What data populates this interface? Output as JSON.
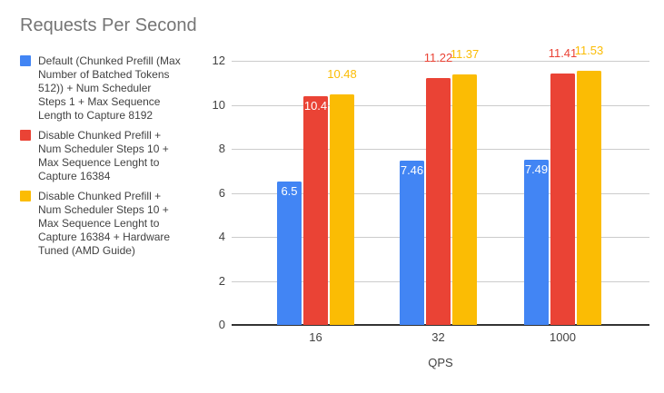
{
  "chart_data": {
    "type": "bar",
    "title": "Requests Per Second",
    "xlabel": "QPS",
    "categories": [
      "16",
      "32",
      "1000"
    ],
    "ylim": [
      0,
      12
    ],
    "yticks": [
      0,
      2,
      4,
      6,
      8,
      10,
      12
    ],
    "grid": true,
    "legend_position": "left",
    "series": [
      {
        "name": "Default (Chunked Prefill (Max Number of Batched Tokens 512)) + Num Scheduler Steps 1 + Max Sequence Length to Capture 8192",
        "legend_lines": "Default (Chunked Prefill (Max\nNumber of Batched Tokens\n512)) + Num Scheduler\nSteps 1 + Max Sequence\nLength to Capture 8192",
        "color": "#4285F4",
        "values": [
          6.5,
          7.46,
          7.49
        ],
        "labels": [
          "6.5",
          "7.46",
          "7.49"
        ],
        "label_placement": [
          "inside",
          "inside",
          "inside"
        ]
      },
      {
        "name": "Disable Chunked Prefill + Num Scheduler Steps 10 + Max Sequence Lenght to Capture 16384",
        "legend_lines": "Disable Chunked Prefill +\nNum Scheduler Steps 10 +\nMax Sequence Lenght to\nCapture 16384",
        "color": "#EA4335",
        "values": [
          10.4,
          11.22,
          11.41
        ],
        "labels": [
          "10.4",
          "11.22",
          "11.41"
        ],
        "label_placement": [
          "inside",
          "outside",
          "outside"
        ]
      },
      {
        "name": "Disable Chunked Prefill + Num Scheduler Steps 10 + Max Sequence Lenght to Capture 16384 + Hardware Tuned (AMD Guide)",
        "legend_lines": "Disable Chunked Prefill +\nNum Scheduler Steps 10 +\nMax Sequence Lenght to\nCapture 16384 + Hardware\nTuned (AMD Guide)",
        "color": "#FBBC04",
        "values": [
          10.48,
          11.37,
          11.53
        ],
        "labels": [
          "10.48",
          "11.37",
          "11.53"
        ],
        "label_placement": [
          "outside",
          "outside",
          "outside"
        ]
      }
    ],
    "colors": {
      "grid": "#cccccc",
      "axis_line": "#333333",
      "tick_text": "#424242",
      "title_text": "#757575",
      "inside_label_text": "#ffffff"
    }
  }
}
